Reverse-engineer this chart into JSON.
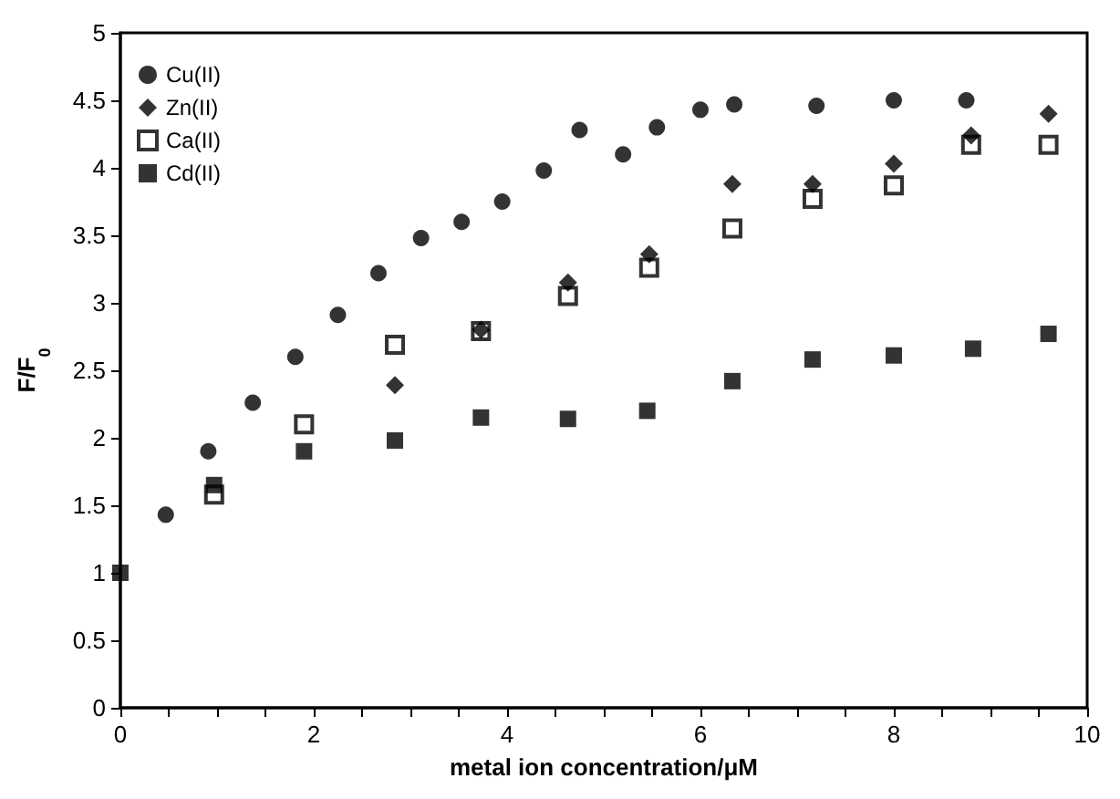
{
  "chart_data": {
    "type": "scatter",
    "xlabel": "metal ion concentration/μM",
    "ylabel": "F/F$_{0}$",
    "xlim": [
      0,
      10
    ],
    "ylim": [
      0,
      5
    ],
    "xticks": [
      0,
      {
        "value": 0.5,
        "label": null
      },
      {
        "value": 1,
        "label": null
      },
      {
        "value": 1.5,
        "label": null
      },
      2,
      {
        "value": 2.5,
        "label": null
      },
      {
        "value": 3,
        "label": null
      },
      {
        "value": 3.5,
        "label": null
      },
      4,
      {
        "value": 4.5,
        "label": null
      },
      {
        "value": 5,
        "label": null
      },
      {
        "value": 5.5,
        "label": null
      },
      6,
      {
        "value": 6.5,
        "label": null
      },
      {
        "value": 7,
        "label": null
      },
      {
        "value": 7.5,
        "label": null
      },
      8,
      {
        "value": 8.5,
        "label": null
      },
      {
        "value": 9,
        "label": null
      },
      {
        "value": 9.5,
        "label": null
      },
      10
    ],
    "yticks": [
      0,
      0.5,
      1,
      1.5,
      2,
      2.5,
      3,
      3.5,
      4,
      4.5,
      5
    ],
    "grid": false,
    "legend": "top left",
    "series": [
      {
        "name": "Cu(II)",
        "color": "#000000",
        "marker": "circle",
        "x": [
          0.47,
          0.91,
          1.37,
          1.81,
          2.25,
          2.67,
          3.11,
          3.53,
          3.95,
          4.38,
          4.75,
          5.2,
          5.55,
          6.0,
          6.35,
          7.2,
          8.0,
          8.75
        ],
        "values": [
          1.43,
          1.9,
          2.26,
          2.6,
          2.91,
          3.22,
          3.48,
          3.6,
          3.75,
          3.98,
          4.28,
          4.1,
          4.3,
          4.43,
          4.47,
          4.46,
          4.5,
          4.5
        ]
      },
      {
        "name": "Zn(II)",
        "color": "#000000",
        "marker": "diamond",
        "x": [
          2.84,
          3.73,
          4.63,
          5.47,
          6.33,
          7.16,
          8.0,
          8.8,
          9.6
        ],
        "values": [
          2.39,
          2.8,
          3.15,
          3.36,
          3.88,
          3.88,
          4.03,
          4.24,
          4.4
        ]
      },
      {
        "name": "Ca(II)",
        "color": "#000000",
        "marker": "square",
        "x": [
          0.97,
          1.9,
          2.84,
          3.73,
          4.63,
          5.47,
          6.33,
          7.16,
          8.0,
          8.8,
          9.6
        ],
        "values": [
          1.58,
          2.1,
          2.69,
          2.79,
          3.05,
          3.26,
          3.55,
          3.77,
          3.87,
          4.17,
          4.17
        ]
      },
      {
        "name": "Cd(II)",
        "color": "#000000",
        "marker": "square",
        "x": [
          0,
          0.97,
          1.9,
          2.84,
          3.73,
          4.63,
          5.45,
          6.33,
          7.16,
          8.0,
          8.82,
          9.6
        ],
        "values": [
          1,
          1.65,
          1.9,
          1.98,
          2.15,
          2.14,
          2.2,
          2.42,
          2.58,
          2.61,
          2.66,
          2.77
        ]
      }
    ]
  }
}
